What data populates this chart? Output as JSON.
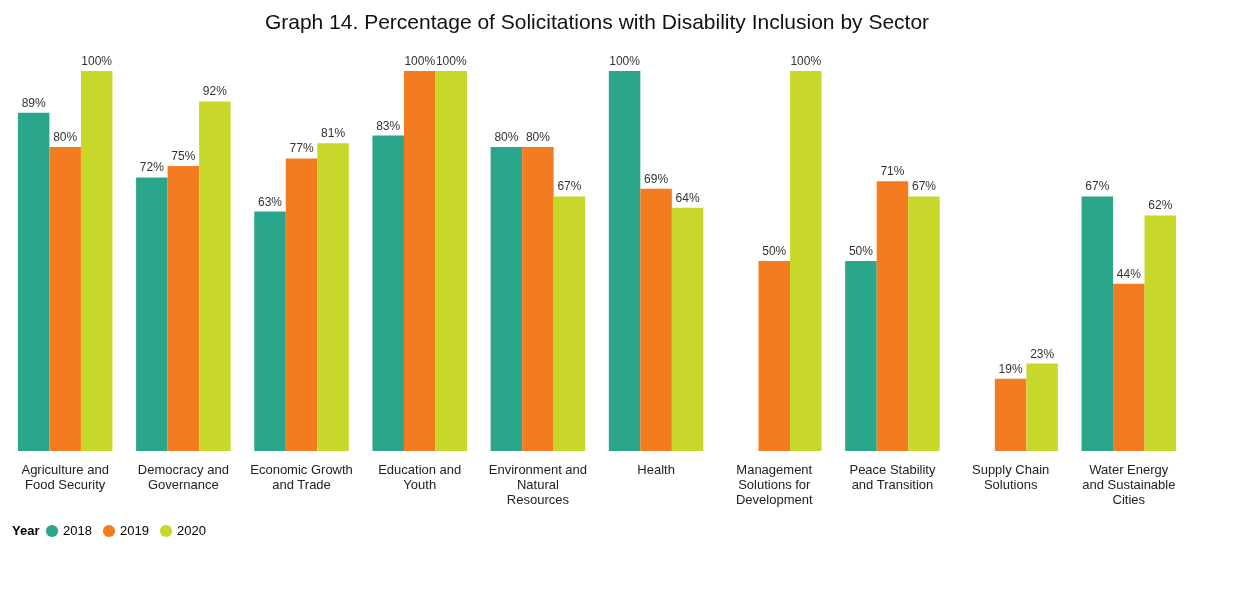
{
  "chart_data": {
    "type": "bar",
    "title": "Graph 14. Percentage of Solicitations with Disability Inclusion by Sector",
    "categories": [
      "Agriculture and Food Security",
      "Democracy and Governance",
      "Economic Growth and Trade",
      "Education and Youth",
      "Environment and Natural Resources",
      "Health",
      "Management Solutions for Development",
      "Peace Stability and Transition",
      "Supply Chain Solutions",
      "Water Energy and Sustainable Cities"
    ],
    "series": [
      {
        "name": "2018",
        "color": "#2ca58d",
        "values": [
          89,
          72,
          63,
          83,
          80,
          100,
          null,
          50,
          null,
          67
        ],
        "value_labels": [
          "89%",
          "72%",
          "63%",
          "83%",
          "80%",
          "100%",
          null,
          "50%",
          null,
          "67%"
        ]
      },
      {
        "name": "2019",
        "color": "#f47c20",
        "values": [
          80,
          75,
          77,
          100,
          80,
          69,
          50,
          71,
          19,
          44
        ],
        "value_labels": [
          "80%",
          "75%",
          "77%",
          "100%",
          "80%",
          "69%",
          "50%",
          "71%",
          "19%",
          "44%"
        ]
      },
      {
        "name": "2020",
        "color": "#c8d82a",
        "values": [
          100,
          92,
          81,
          100,
          67,
          64,
          100,
          67,
          23,
          62
        ],
        "value_labels": [
          "100%",
          "92%",
          "81%",
          "100%",
          "67%",
          "64%",
          "100%",
          "67%",
          "23%",
          "62%"
        ]
      }
    ],
    "legend_title": "Year",
    "legend": "bottom",
    "tick_labels": "x",
    "grid": false
  }
}
